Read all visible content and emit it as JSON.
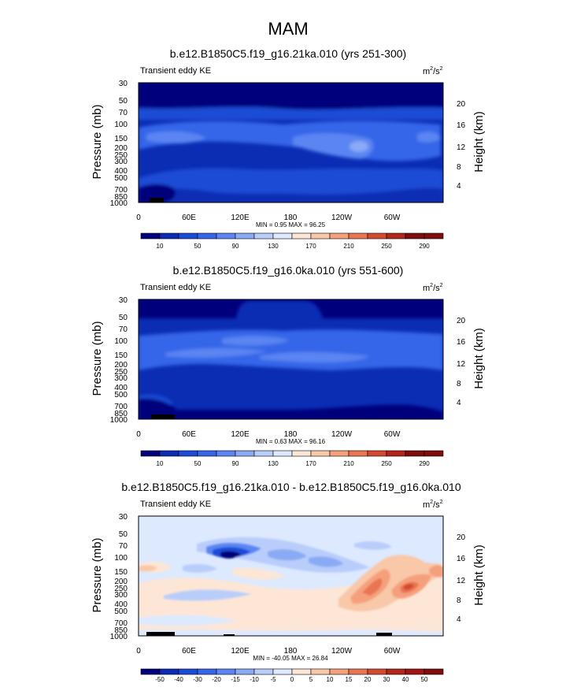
{
  "figure": {
    "title": "MAM",
    "ylabel_left": "Pressure (mb)",
    "ylabel_right": "Height (km)"
  },
  "chart_data": [
    {
      "type": "heatmap",
      "title": "b.e12.B1850C5.f19_g16.21ka.010 (yrs 251-300)",
      "subtitle_left": "Transient eddy KE",
      "units": "m²/s²",
      "units_base": "m",
      "units_num_exp": "2",
      "units_den": "/s",
      "units_den_exp": "2",
      "xlabel": "",
      "ylabel": "Pressure (mb)",
      "ylabel_right": "Height (km)",
      "x_ticks": [
        "0",
        "60E",
        "120E",
        "180",
        "120W",
        "60W"
      ],
      "x_tick_lon": [
        0,
        60,
        120,
        180,
        240,
        300
      ],
      "xlim": [
        0,
        360
      ],
      "y_ticks": [
        "30",
        "50",
        "70",
        "100",
        "150",
        "200",
        "250",
        "300",
        "400",
        "500",
        "700",
        "850",
        "1000"
      ],
      "y_tick_p": [
        30,
        50,
        70,
        100,
        150,
        200,
        250,
        300,
        400,
        500,
        700,
        850,
        1000
      ],
      "ylim": [
        1000,
        30
      ],
      "height_ticks": [
        "4",
        "8",
        "12",
        "16",
        "20"
      ],
      "height_tick_km": [
        4,
        8,
        12,
        16,
        20
      ],
      "min_max": "MIN =   0.95  MAX =  96.25",
      "min": 0.95,
      "max": 96.25,
      "colorbar": {
        "labels": [
          "10",
          "50",
          "90",
          "130",
          "170",
          "210",
          "250",
          "290"
        ],
        "colors": [
          "#00007c",
          "#0a2db4",
          "#1c4cd6",
          "#3665e8",
          "#5a85f2",
          "#8aaaf5",
          "#b9cdfb",
          "#dde9ff",
          "#fde6d6",
          "#f9c8a8",
          "#f5a07c",
          "#ea7552",
          "#d44a30",
          "#b3261c",
          "#800d0d"
        ]
      }
    },
    {
      "type": "heatmap",
      "title": "b.e12.B1850C5.f19_g16.0ka.010 (yrs 551-600)",
      "subtitle_left": "Transient eddy KE",
      "units": "m²/s²",
      "units_base": "m",
      "units_num_exp": "2",
      "units_den": "/s",
      "units_den_exp": "2",
      "xlabel": "",
      "ylabel": "Pressure (mb)",
      "ylabel_right": "Height (km)",
      "x_ticks": [
        "0",
        "60E",
        "120E",
        "180",
        "120W",
        "60W"
      ],
      "x_tick_lon": [
        0,
        60,
        120,
        180,
        240,
        300
      ],
      "xlim": [
        0,
        360
      ],
      "y_ticks": [
        "30",
        "50",
        "70",
        "100",
        "150",
        "200",
        "250",
        "300",
        "400",
        "500",
        "700",
        "850",
        "1000"
      ],
      "y_tick_p": [
        30,
        50,
        70,
        100,
        150,
        200,
        250,
        300,
        400,
        500,
        700,
        850,
        1000
      ],
      "ylim": [
        1000,
        30
      ],
      "height_ticks": [
        "4",
        "8",
        "12",
        "16",
        "20"
      ],
      "height_tick_km": [
        4,
        8,
        12,
        16,
        20
      ],
      "min_max": "MIN =   0.63  MAX =  96.16",
      "min": 0.63,
      "max": 96.16,
      "colorbar": {
        "labels": [
          "10",
          "50",
          "90",
          "130",
          "170",
          "210",
          "250",
          "290"
        ],
        "colors": [
          "#00007c",
          "#0a2db4",
          "#1c4cd6",
          "#3665e8",
          "#5a85f2",
          "#8aaaf5",
          "#b9cdfb",
          "#dde9ff",
          "#fde6d6",
          "#f9c8a8",
          "#f5a07c",
          "#ea7552",
          "#d44a30",
          "#b3261c",
          "#800d0d"
        ]
      }
    },
    {
      "type": "heatmap",
      "title": "b.e12.B1850C5.f19_g16.21ka.010 - b.e12.B1850C5.f19_g16.0ka.010",
      "subtitle_left": "Transient eddy KE",
      "units": "m²/s²",
      "units_base": "m",
      "units_num_exp": "2",
      "units_den": "/s",
      "units_den_exp": "2",
      "xlabel": "",
      "ylabel": "Pressure (mb)",
      "ylabel_right": "Height (km)",
      "x_ticks": [
        "0",
        "60E",
        "120E",
        "180",
        "120W",
        "60W"
      ],
      "x_tick_lon": [
        0,
        60,
        120,
        180,
        240,
        300
      ],
      "xlim": [
        0,
        360
      ],
      "y_ticks": [
        "30",
        "50",
        "70",
        "100",
        "150",
        "200",
        "250",
        "300",
        "400",
        "500",
        "700",
        "850",
        "1000"
      ],
      "y_tick_p": [
        30,
        50,
        70,
        100,
        150,
        200,
        250,
        300,
        400,
        500,
        700,
        850,
        1000
      ],
      "ylim": [
        1000,
        30
      ],
      "height_ticks": [
        "4",
        "8",
        "12",
        "16",
        "20"
      ],
      "height_tick_km": [
        4,
        8,
        12,
        16,
        20
      ],
      "min_max": "MIN = -40.05  MAX =  26.84",
      "min": -40.05,
      "max": 26.84,
      "colorbar": {
        "labels": [
          "-50",
          "-40",
          "-30",
          "-20",
          "-15",
          "-10",
          "-5",
          "0",
          "5",
          "10",
          "15",
          "20",
          "30",
          "40",
          "50"
        ],
        "colors": [
          "#00007c",
          "#0a2db4",
          "#1c4cd6",
          "#3665e8",
          "#5a85f2",
          "#8aaaf5",
          "#b9cdfb",
          "#dde9ff",
          "#fde6d6",
          "#f9c8a8",
          "#f5a07c",
          "#ea7552",
          "#d44a30",
          "#b3261c",
          "#a01414",
          "#800d0d"
        ]
      }
    }
  ]
}
